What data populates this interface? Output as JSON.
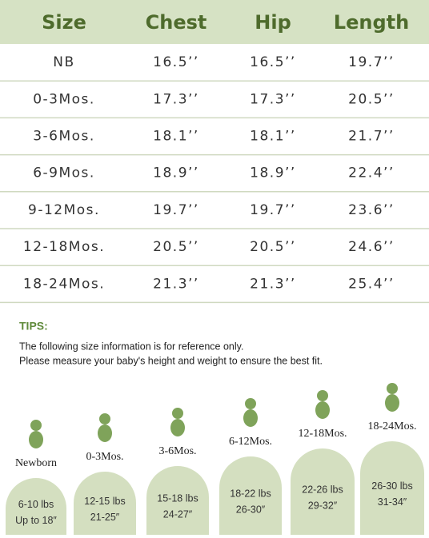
{
  "table": {
    "headers": [
      "Size",
      "Chest",
      "Hip",
      "Length"
    ],
    "rows": [
      [
        "NB",
        "16.5’’",
        "16.5’’",
        "19.7’’"
      ],
      [
        "0-3Mos.",
        "17.3’’",
        "17.3’’",
        "20.5’’"
      ],
      [
        "3-6Mos.",
        "18.1’’",
        "18.1’’",
        "21.7’’"
      ],
      [
        "6-9Mos.",
        "18.9’’",
        "18.9’’",
        "22.4’’"
      ],
      [
        "9-12Mos.",
        "19.7’’",
        "19.7’’",
        "23.6’’"
      ],
      [
        "12-18Mos.",
        "20.5’’",
        "20.5’’",
        "24.6’’"
      ],
      [
        "18-24Mos.",
        "21.3’’",
        "21.3’’",
        "25.4’’"
      ]
    ]
  },
  "tips": {
    "title": "TIPS:",
    "lines": [
      "The following size information is for reference only.",
      "Please measure your baby's height and weight to ensure the best fit."
    ]
  },
  "sizes": [
    {
      "label": "Newborn",
      "weight": "6-10 lbs",
      "length": "Up to 18″"
    },
    {
      "label": "0-3Mos.",
      "weight": "12-15 lbs",
      "length": "21-25″"
    },
    {
      "label": "3-6Mos.",
      "weight": "15-18 lbs",
      "length": "24-27″"
    },
    {
      "label": "6-12Mos.",
      "weight": "18-22 lbs",
      "length": "26-30″"
    },
    {
      "label": "12-18Mos.",
      "weight": "22-26 lbs",
      "length": "29-32″"
    },
    {
      "label": "18-24Mos.",
      "weight": "26-30 lbs",
      "length": "31-34″"
    }
  ]
}
